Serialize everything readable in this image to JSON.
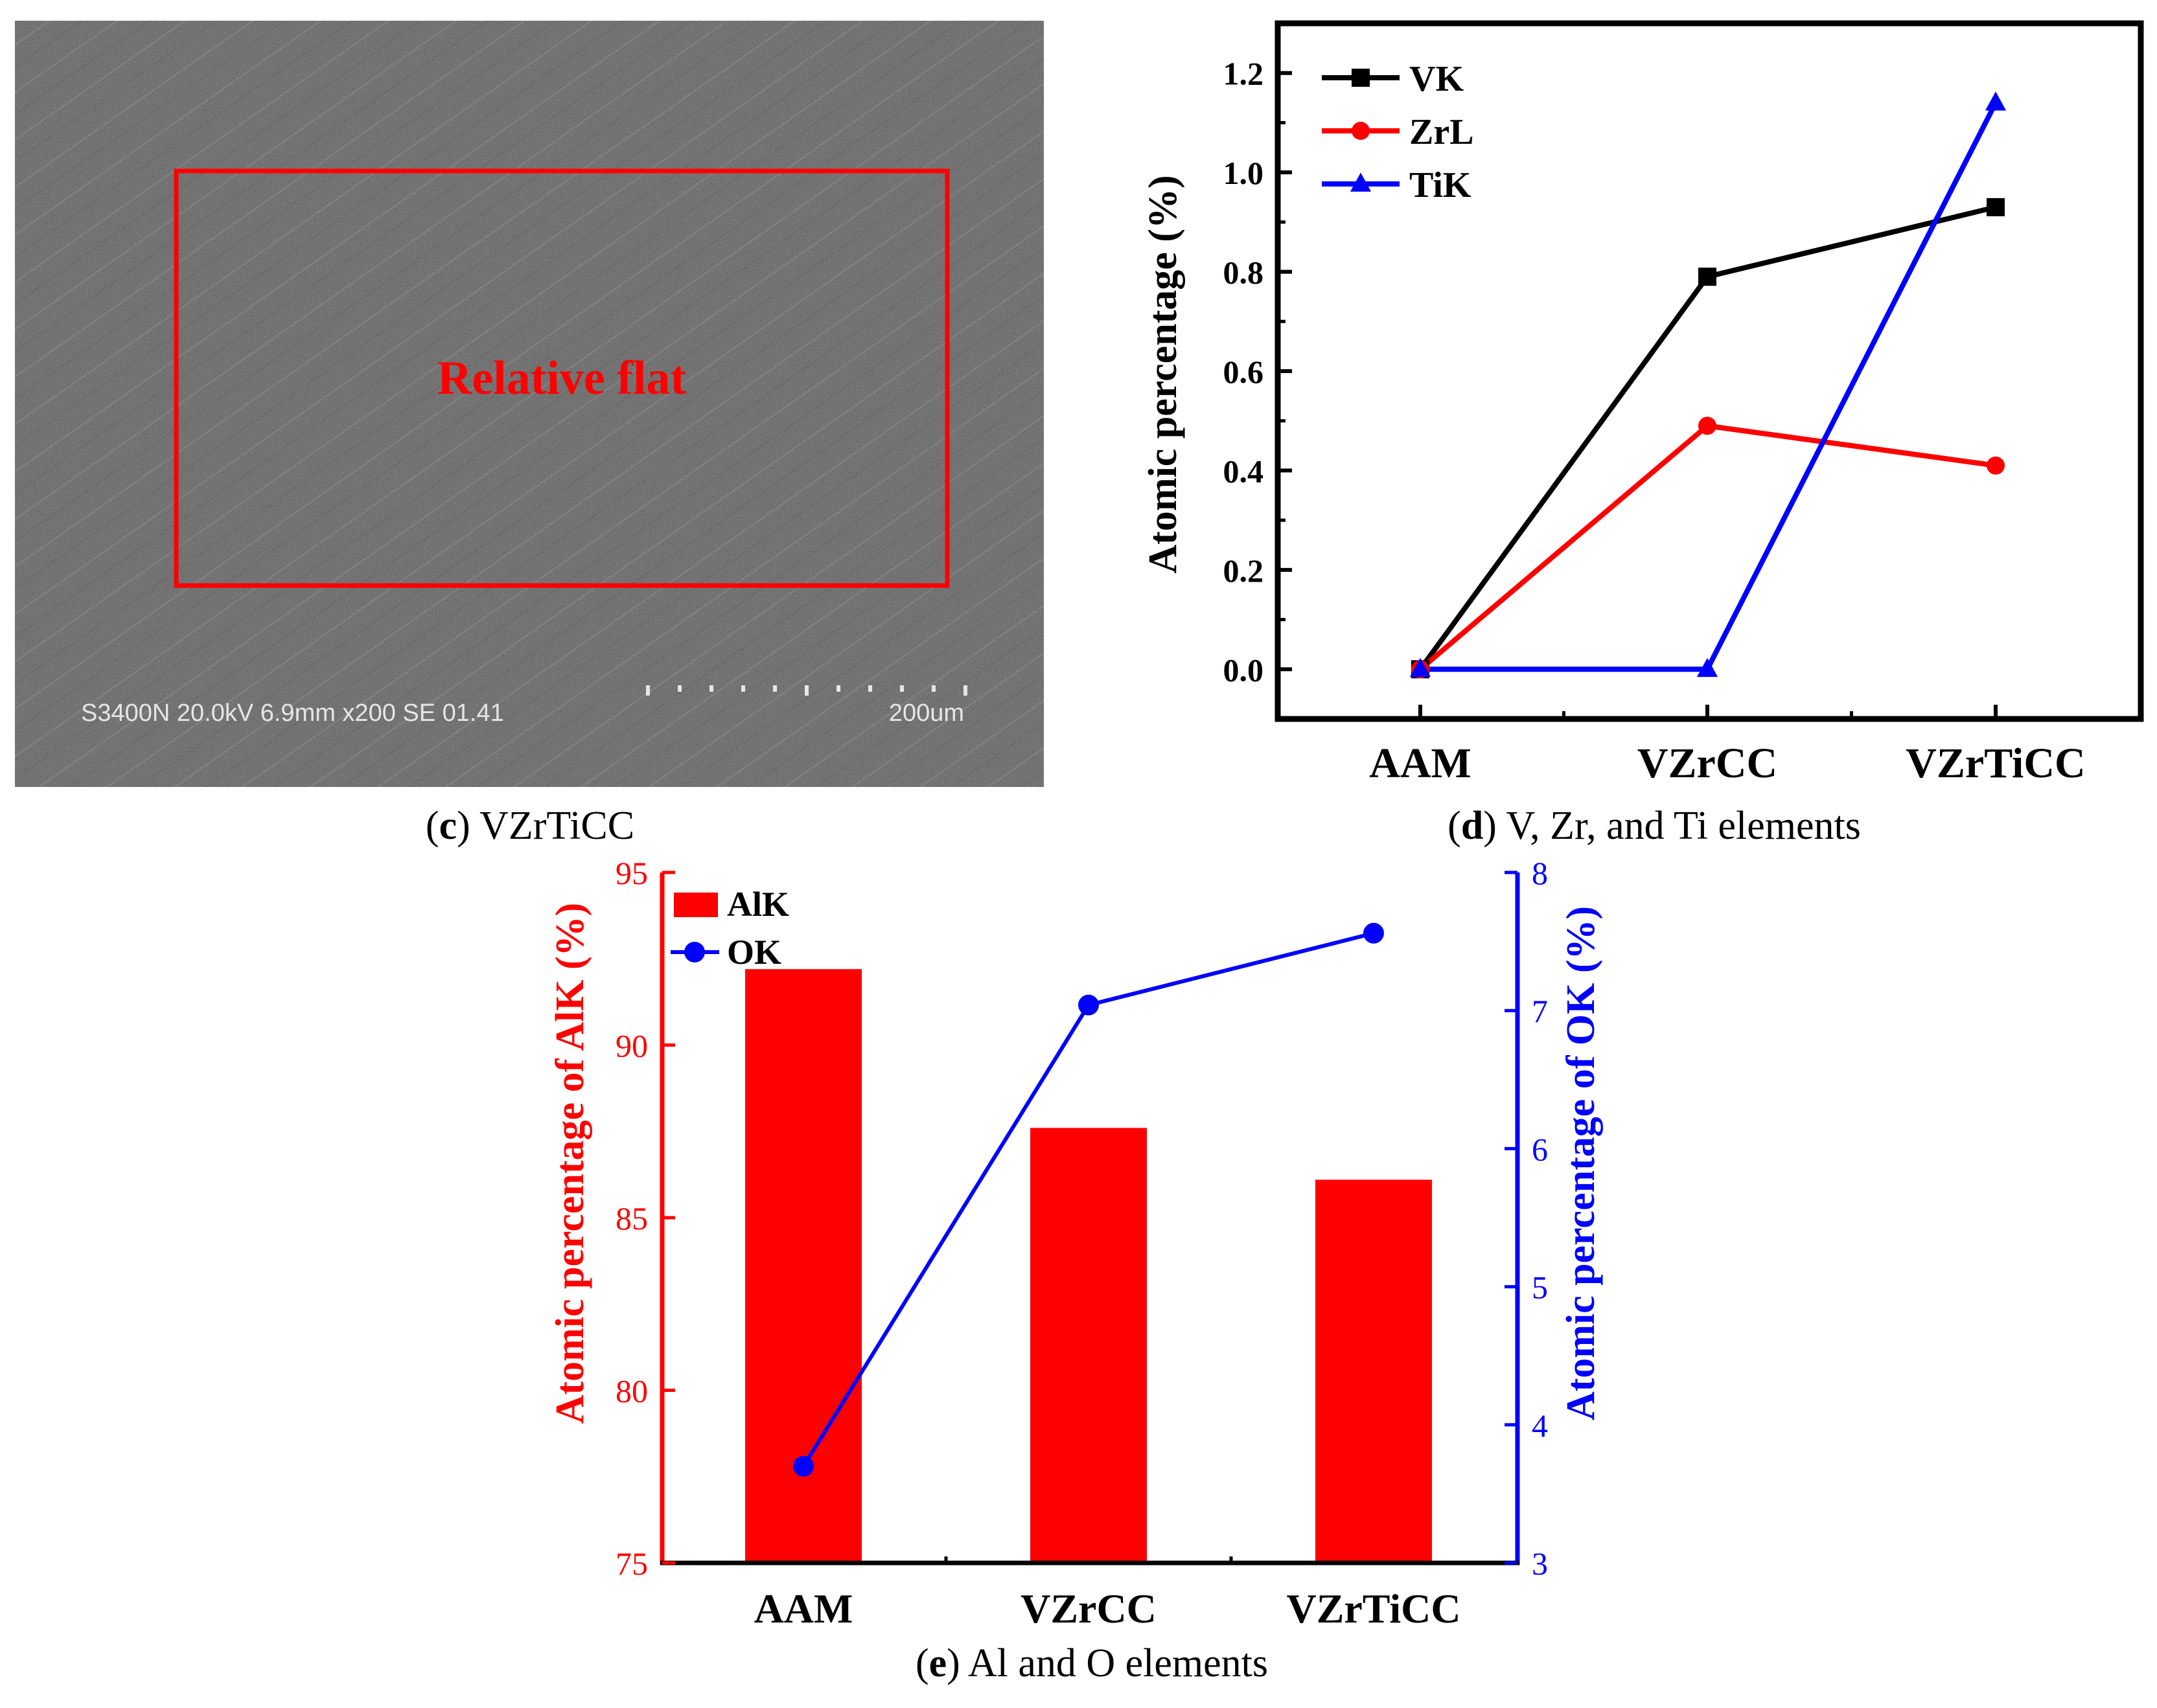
{
  "sem_panel": {
    "label": "c",
    "title": "VZrTiCC",
    "region_label": "Relative flat",
    "info_text": "S3400N 20.0kV 6.9mm x200 SE  01.41",
    "scale_text": "200um",
    "colors": {
      "region": "#ff0000",
      "info_text": "#e6e6e6"
    }
  },
  "chart_data": [
    {
      "id": "d",
      "type": "line",
      "label": "d",
      "title": "V, Zr, and Ti elements",
      "categories": [
        "AAM",
        "VZrCC",
        "VZrTiCC"
      ],
      "ylabel": "Atomic percentage (%)",
      "xlabel": "",
      "ylim": [
        -0.1,
        1.3
      ],
      "yticks": [
        "0.0",
        "0.2",
        "0.4",
        "0.6",
        "0.8",
        "1.0",
        "1.2"
      ],
      "legend_position": "top-left",
      "series": [
        {
          "name": "VK",
          "color": "#000000",
          "marker": "square",
          "values": [
            0.0,
            0.79,
            0.93
          ]
        },
        {
          "name": "ZrL",
          "color": "#ff0000",
          "marker": "circle",
          "values": [
            0.0,
            0.49,
            0.41
          ]
        },
        {
          "name": "TiK",
          "color": "#0000ff",
          "marker": "triangle",
          "values": [
            0.0,
            0.0,
            1.14
          ]
        }
      ]
    },
    {
      "id": "e",
      "type": "bar",
      "label": "e",
      "title": "Al and O elements",
      "categories": [
        "AAM",
        "VZrCC",
        "VZrTiCC"
      ],
      "ylabel": "Atomic percentage of AlK (%)",
      "ylabel_right": "Atomic percentage of OK (%)",
      "ylim": [
        75,
        95
      ],
      "ylim_right": [
        3,
        8
      ],
      "yticks": [
        "75",
        "80",
        "85",
        "90",
        "95"
      ],
      "yticks_right": [
        "3",
        "4",
        "5",
        "6",
        "7",
        "8"
      ],
      "legend_position": "top-left",
      "series": [
        {
          "name": "AlK",
          "type": "bar",
          "axis": "left",
          "color": "#ff0000",
          "values": [
            92.2,
            87.6,
            86.1
          ]
        },
        {
          "name": "OK",
          "type": "line",
          "axis": "right",
          "color": "#0000ff",
          "marker": "circle",
          "values": [
            3.7,
            7.04,
            7.56
          ]
        }
      ]
    }
  ]
}
